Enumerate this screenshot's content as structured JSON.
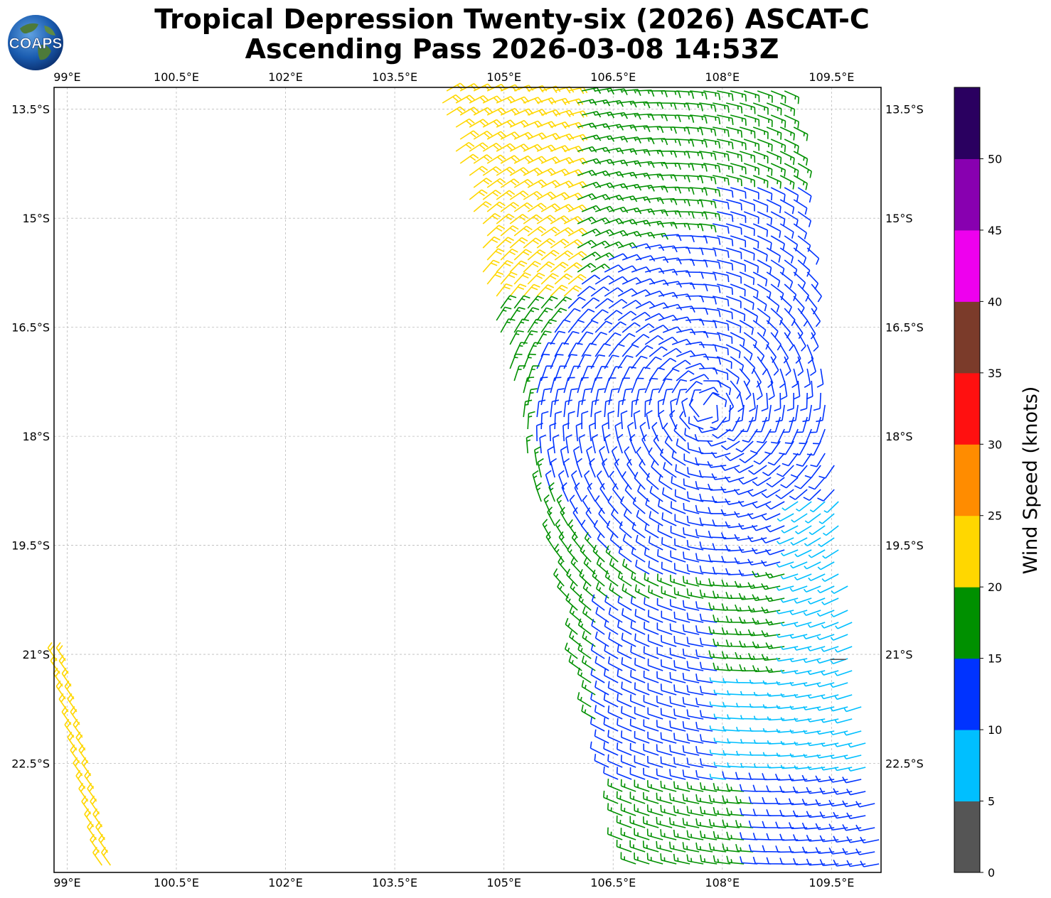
{
  "header": {
    "title_line1": "Tropical Depression Twenty-six (2026) ASCAT-C",
    "title_line2": "Ascending Pass 2026-03-08 14:53Z",
    "logo_text": "COAPS"
  },
  "map": {
    "lon_labels": [
      "99°E",
      "100.5°E",
      "102°E",
      "103.5°E",
      "105°E",
      "106.5°E",
      "108°E",
      "109.5°E"
    ],
    "lat_labels": [
      "13.5°S",
      "15°S",
      "16.5°S",
      "18°S",
      "19.5°S",
      "21°S",
      "22.5°S"
    ],
    "lon_values": [
      99,
      100.5,
      102,
      103.5,
      105,
      106.5,
      108,
      109.5
    ],
    "lat_values": [
      -13.5,
      -15,
      -16.5,
      -18,
      -19.5,
      -21,
      -22.5
    ],
    "lon_range": [
      98.82,
      110.18
    ],
    "lat_range": [
      -24.0,
      -13.2
    ],
    "gridlines": true,
    "low_center": {
      "lon": 109.6,
      "lat": -21.07
    }
  },
  "colorbar": {
    "title": "Wind Speed (knots)",
    "tick_labels": [
      "0",
      "5",
      "10",
      "15",
      "20",
      "25",
      "30",
      "35",
      "40",
      "45",
      "50"
    ],
    "bins": [
      {
        "min": 0,
        "max": 5,
        "color": "#555555"
      },
      {
        "min": 5,
        "max": 10,
        "color": "#00bfff"
      },
      {
        "min": 10,
        "max": 15,
        "color": "#0033ff"
      },
      {
        "min": 15,
        "max": 20,
        "color": "#009000"
      },
      {
        "min": 20,
        "max": 25,
        "color": "#ffd700"
      },
      {
        "min": 25,
        "max": 30,
        "color": "#ff8c00"
      },
      {
        "min": 30,
        "max": 35,
        "color": "#ff1010"
      },
      {
        "min": 35,
        "max": 40,
        "color": "#7b3b2a"
      },
      {
        "min": 40,
        "max": 45,
        "color": "#ee00ee"
      },
      {
        "min": 45,
        "max": 50,
        "color": "#8800b0"
      },
      {
        "min": 50,
        "max": 55,
        "color": "#2a0060"
      }
    ]
  }
}
